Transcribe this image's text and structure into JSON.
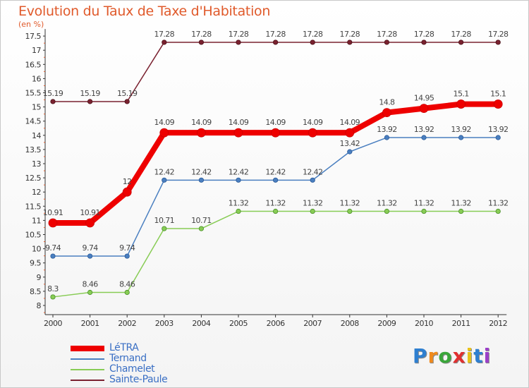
{
  "header": {
    "title": "Evolution du Taux de Taxe d'Habitation",
    "subtitle": "(en %)"
  },
  "chart_data": {
    "type": "line",
    "x": [
      "2000",
      "2001",
      "2002",
      "2003",
      "2004",
      "2005",
      "2006",
      "2007",
      "2008",
      "2009",
      "2010",
      "2011",
      "2012"
    ],
    "ylim": [
      8,
      17.5
    ],
    "yticks": [
      "8",
      "8.5",
      "9",
      "9.5",
      "10",
      "10.5",
      "11",
      "11.5",
      "12",
      "12.5",
      "13",
      "13.5",
      "14",
      "14.5",
      "15",
      "15.5",
      "16",
      "16.5",
      "17",
      "17.5"
    ],
    "grid": false,
    "legend_position": "bottom-left",
    "series": [
      {
        "name": "LéTRA",
        "color": "#ee0000",
        "values": [
          10.91,
          10.91,
          12,
          14.09,
          14.09,
          14.09,
          14.09,
          14.09,
          14.09,
          14.8,
          14.95,
          15.1,
          15.1
        ],
        "labels": [
          "10.91",
          "10.91",
          "12",
          "14.09",
          "14.09",
          "14.09",
          "14.09",
          "14.09",
          "14.09",
          "14.8",
          "14.95",
          "15.1",
          "15.1"
        ]
      },
      {
        "name": "Ternand",
        "color": "#4a7fc0",
        "values": [
          9.74,
          9.74,
          9.74,
          12.42,
          12.42,
          12.42,
          12.42,
          12.42,
          13.42,
          13.92,
          13.92,
          13.92,
          13.92
        ],
        "labels": [
          "9.74",
          "9.74",
          "9.74",
          "12.42",
          "12.42",
          "12.42",
          "12.42",
          "12.42",
          "13.42",
          "13.92",
          "13.92",
          "13.92",
          "13.92"
        ]
      },
      {
        "name": "Chamelet",
        "color": "#88cc55",
        "values": [
          8.3,
          8.46,
          8.46,
          10.71,
          10.71,
          11.32,
          11.32,
          11.32,
          11.32,
          11.32,
          11.32,
          11.32,
          11.32
        ],
        "labels": [
          "8.3",
          "8.46",
          "8.46",
          "10.71",
          "10.71",
          "11.32",
          "11.32",
          "11.32",
          "11.32",
          "11.32",
          "11.32",
          "11.32",
          "11.32"
        ]
      },
      {
        "name": "Sainte-Paule",
        "color": "#7a2230",
        "values": [
          15.19,
          15.19,
          15.19,
          17.28,
          17.28,
          17.28,
          17.28,
          17.28,
          17.28,
          17.28,
          17.28,
          17.28,
          17.28
        ],
        "labels": [
          "15.19",
          "15.19",
          "15.19",
          "17.28",
          "17.28",
          "17.28",
          "17.28",
          "17.28",
          "17.28",
          "17.28",
          "17.28",
          "17.28",
          "17.28"
        ]
      }
    ]
  },
  "logo": {
    "letters": [
      "P",
      "r",
      "o",
      "x",
      "i",
      "t",
      "i"
    ],
    "colors": [
      "#2e7fd0",
      "#f08a1c",
      "#3aa63a",
      "#e03030",
      "#e8c21a",
      "#2e7fd0",
      "#9b3fc8"
    ]
  }
}
